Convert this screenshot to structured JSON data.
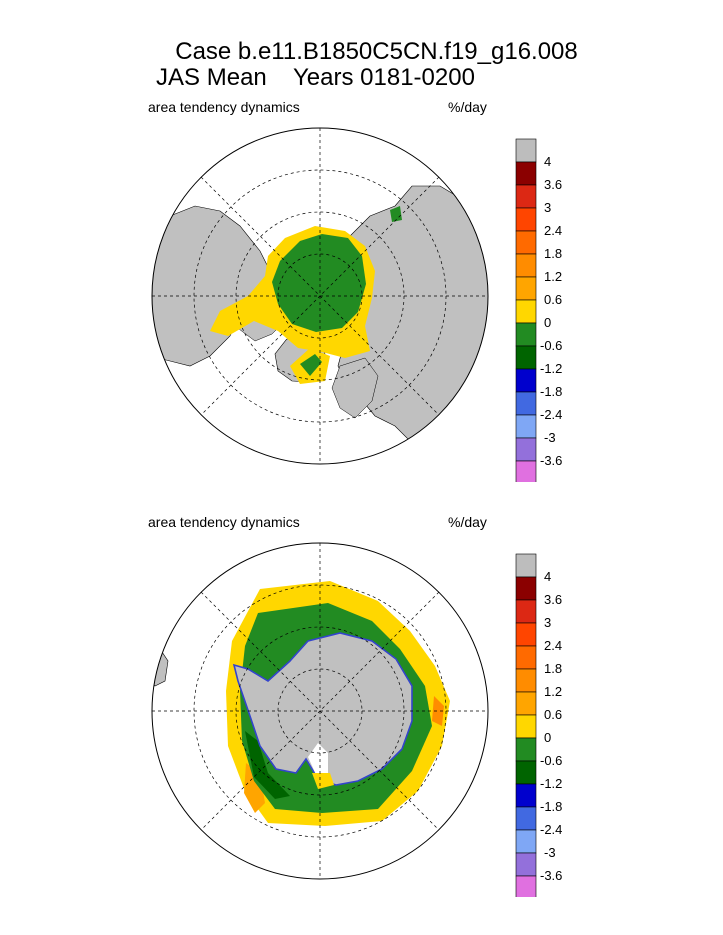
{
  "title_line1": "Case b.e11.B1850C5CN.f19_g16.008",
  "title_line2": "JAS Mean    Years 0181-0200",
  "colors": {
    "land": "#c0c0c0",
    "ocean": "#ffffff",
    "levels": [
      "#e070e0",
      "#9370db",
      "#7fa7f5",
      "#4169e1",
      "#0000cd",
      "#006400",
      "#228b22",
      "#ffd700",
      "#ffa500",
      "#ff8c00",
      "#ff6a00",
      "#ff4500",
      "#dc2814",
      "#8b0000",
      "#bdbdbd"
    ]
  },
  "chart_data": [
    {
      "type": "heatmap",
      "projection": "polar-stereographic-north",
      "field_label": "area tendency dynamics",
      "units": "%/day",
      "grid": true,
      "legend_placement": "right",
      "colorbar_ticks": [
        "4",
        "3.6",
        "3",
        "2.4",
        "1.8",
        "1.2",
        "0.6",
        "0",
        "-0.6",
        "-1.2",
        "-1.8",
        "-2.4",
        "-3",
        "-3.6"
      ]
    },
    {
      "type": "heatmap",
      "projection": "polar-stereographic-south",
      "field_label": "area tendency dynamics",
      "units": "%/day",
      "grid": true,
      "legend_placement": "right",
      "colorbar_ticks": [
        "4",
        "3.6",
        "3",
        "2.4",
        "1.8",
        "1.2",
        "0.6",
        "0",
        "-0.6",
        "-1.2",
        "-1.8",
        "-2.4",
        "-3",
        "-3.6"
      ]
    }
  ]
}
